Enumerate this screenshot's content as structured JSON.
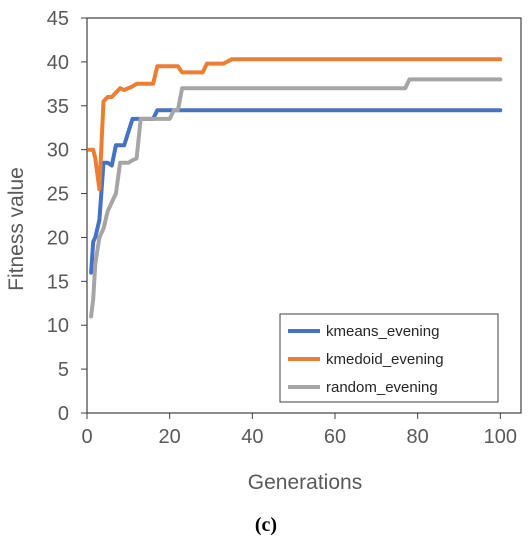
{
  "chart_data": {
    "type": "line",
    "title": "",
    "xlabel": "Generations",
    "ylabel": "Fitness value",
    "xlim": [
      0,
      105
    ],
    "ylim": [
      0,
      45
    ],
    "xticks": [
      0,
      20,
      40,
      60,
      80,
      100
    ],
    "yticks": [
      0,
      5,
      10,
      15,
      20,
      25,
      30,
      35,
      40,
      45
    ],
    "grid": false,
    "legend_position": "bottom-right",
    "series": [
      {
        "name": "kmeans_evening",
        "color": "#4472C4",
        "points": [
          [
            1,
            16
          ],
          [
            1.5,
            19.5
          ],
          [
            2,
            20
          ],
          [
            3,
            22
          ],
          [
            4,
            28.5
          ],
          [
            5,
            28.5
          ],
          [
            6,
            28.2
          ],
          [
            7,
            30.5
          ],
          [
            8,
            30.5
          ],
          [
            9,
            30.5
          ],
          [
            10,
            32
          ],
          [
            11,
            33.5
          ],
          [
            12,
            33.5
          ],
          [
            16,
            33.5
          ],
          [
            17,
            34.5
          ],
          [
            18,
            34.5
          ],
          [
            100,
            34.5
          ]
        ]
      },
      {
        "name": "kmedoid_evening",
        "color": "#ED7D31",
        "points": [
          [
            0.5,
            30
          ],
          [
            1.5,
            30
          ],
          [
            2,
            29
          ],
          [
            3,
            25.5
          ],
          [
            4,
            35.5
          ],
          [
            5,
            36
          ],
          [
            6,
            36
          ],
          [
            7,
            36.5
          ],
          [
            8,
            37
          ],
          [
            9,
            36.8
          ],
          [
            10,
            37
          ],
          [
            11,
            37.2
          ],
          [
            12,
            37.5
          ],
          [
            13,
            37.5
          ],
          [
            16,
            37.5
          ],
          [
            17,
            39.5
          ],
          [
            18,
            39.5
          ],
          [
            22,
            39.5
          ],
          [
            23,
            38.8
          ],
          [
            28,
            38.8
          ],
          [
            29,
            39.8
          ],
          [
            33,
            39.8
          ],
          [
            35,
            40.3
          ],
          [
            100,
            40.3
          ]
        ]
      },
      {
        "name": "random_evening",
        "color": "#A5A5A5",
        "points": [
          [
            1,
            11
          ],
          [
            1.5,
            13
          ],
          [
            2,
            17
          ],
          [
            3,
            20
          ],
          [
            4,
            21
          ],
          [
            5,
            23
          ],
          [
            6,
            24
          ],
          [
            7,
            25
          ],
          [
            8,
            28.5
          ],
          [
            9,
            28.5
          ],
          [
            10,
            28.5
          ],
          [
            11,
            28.8
          ],
          [
            12,
            29
          ],
          [
            13,
            33.5
          ],
          [
            20,
            33.5
          ],
          [
            21,
            34.5
          ],
          [
            22,
            34.5
          ],
          [
            23,
            37
          ],
          [
            25,
            37
          ],
          [
            77,
            37
          ],
          [
            78,
            38
          ],
          [
            100,
            38
          ]
        ]
      }
    ]
  },
  "caption": "(c)"
}
